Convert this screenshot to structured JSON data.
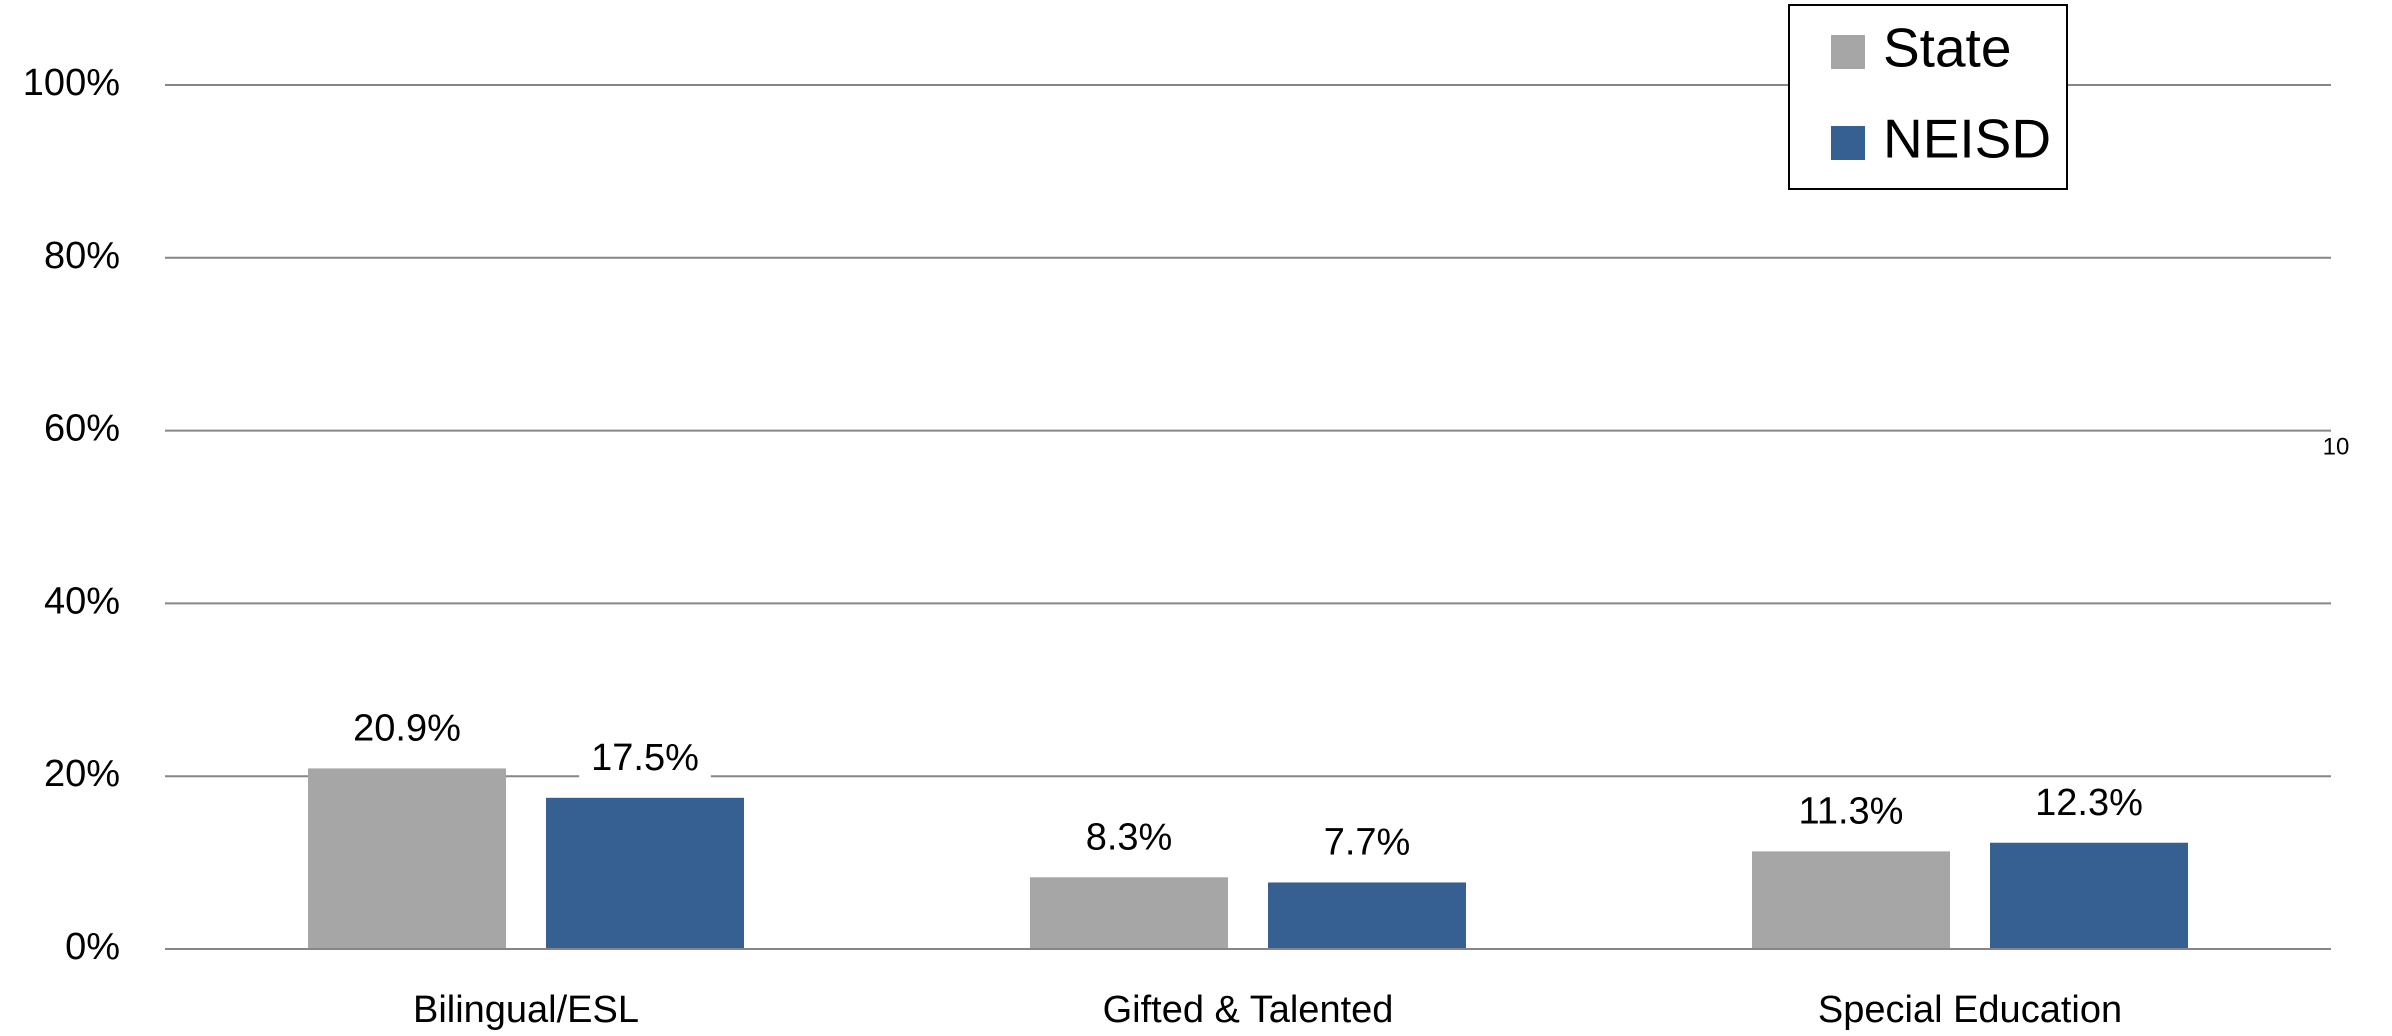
{
  "chart_data": {
    "type": "bar",
    "categories": [
      "Bilingual/ESL",
      "Gifted & Talented",
      "Special Education"
    ],
    "series": [
      {
        "name": "State",
        "color": "#a6a6a6",
        "values": [
          20.9,
          8.3,
          11.3
        ],
        "value_labels": [
          "20.9%",
          "8.3%",
          "11.3%"
        ]
      },
      {
        "name": "NEISD",
        "color": "#376092",
        "values": [
          17.5,
          7.7,
          12.3
        ],
        "value_labels": [
          "17.5%",
          "7.7%",
          "12.3%"
        ]
      }
    ],
    "ylim": [
      0,
      100
    ],
    "yticks": [
      {
        "value": 0,
        "label": "0%"
      },
      {
        "value": 20,
        "label": "20%"
      },
      {
        "value": 40,
        "label": "40%"
      },
      {
        "value": 60,
        "label": "60%"
      },
      {
        "value": 80,
        "label": "80%"
      },
      {
        "value": 100,
        "label": "100%"
      }
    ],
    "grid": true,
    "legend": "top-right",
    "annotations": [
      "10"
    ]
  }
}
